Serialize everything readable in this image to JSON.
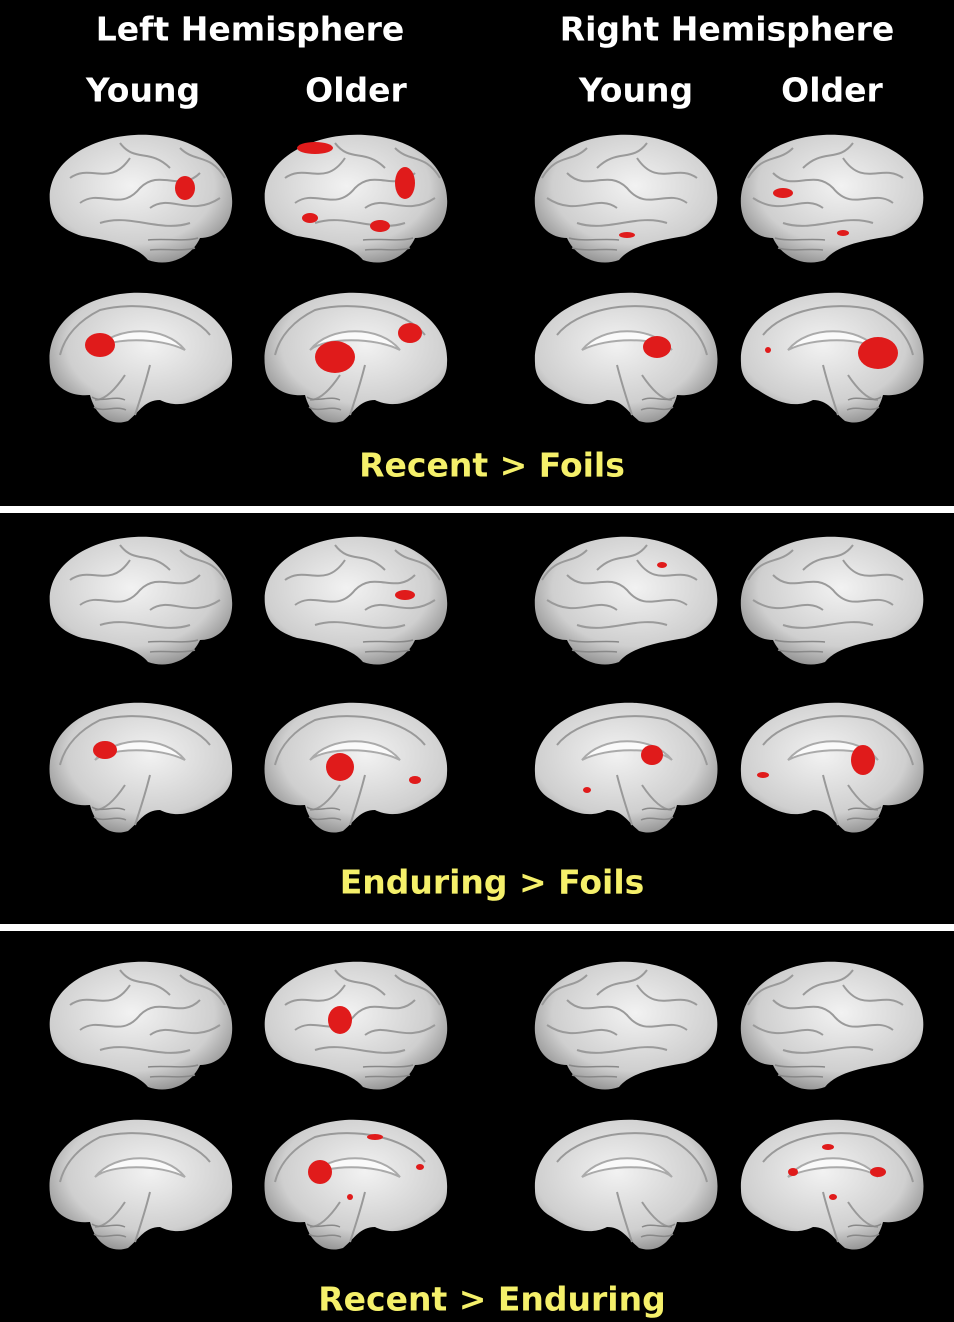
{
  "header": {
    "left": "Left Hemisphere",
    "right": "Right Hemisphere",
    "groups": [
      "Young",
      "Older",
      "Young",
      "Older"
    ]
  },
  "panels": [
    {
      "title": "Recent > Foils"
    },
    {
      "title": "Enduring > Foils"
    },
    {
      "title": "Recent > Enduring"
    }
  ]
}
